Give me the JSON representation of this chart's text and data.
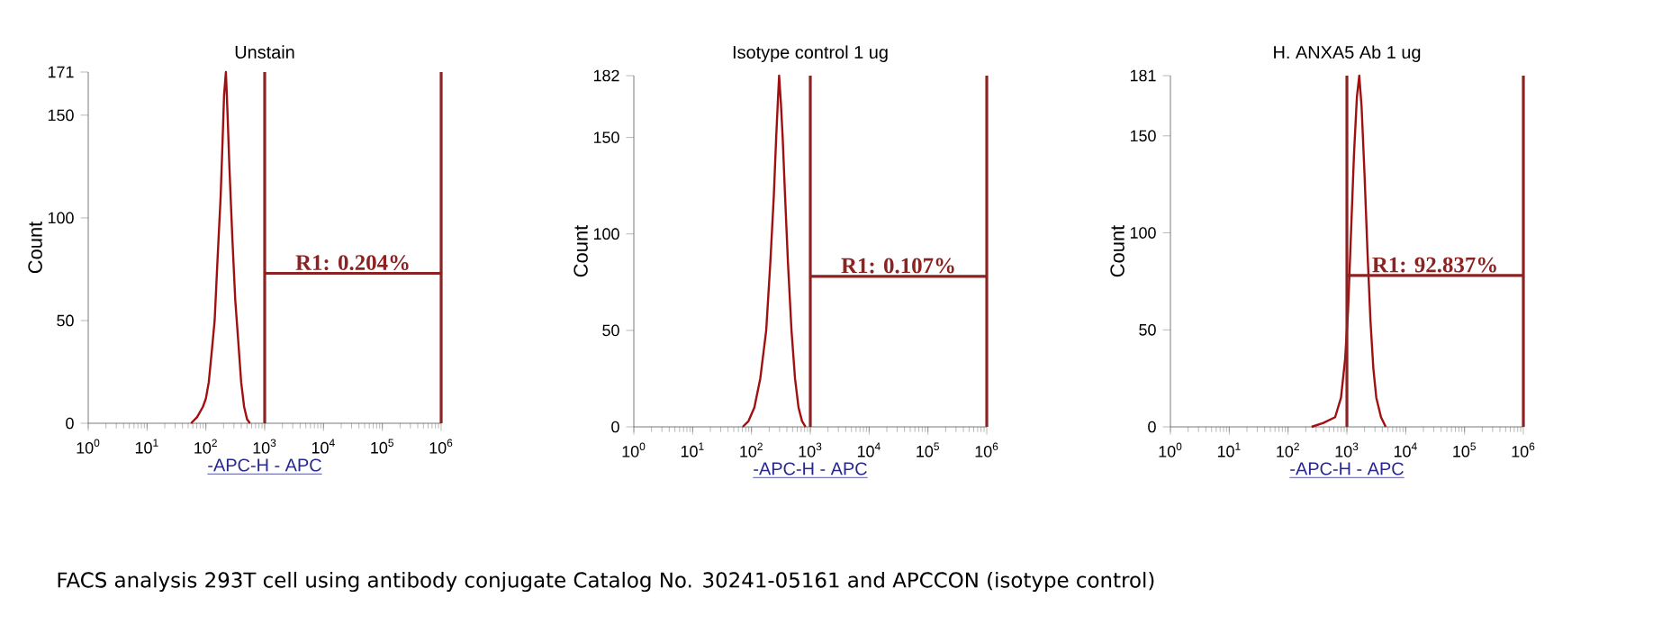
{
  "chart_data": [
    {
      "type": "line",
      "title": "Unstain",
      "xlabel": "-APC-H - APC",
      "ylabel": "Count",
      "log": "x",
      "xlim": [
        1,
        1000000
      ],
      "ylim": [
        0,
        171
      ],
      "xticks": [
        {
          "value": 1,
          "label": "10$^{0}$"
        },
        {
          "value": 10,
          "label": "10$^{1}$"
        },
        {
          "value": 100,
          "label": "10$^{2}$"
        },
        {
          "value": 1000,
          "label": "10$^{3}$"
        },
        {
          "value": 10000,
          "label": "10$^{4}$"
        },
        {
          "value": 100000,
          "label": "10$^{5}$"
        },
        {
          "value": 1000000,
          "label": "10$^{6}$"
        }
      ],
      "yticks": [
        0,
        50,
        100,
        150,
        171
      ],
      "x": [
        56,
        71,
        89,
        100,
        112,
        126,
        141,
        158,
        178,
        191,
        204,
        219,
        234,
        251,
        282,
        316,
        355,
        398,
        447,
        501,
        562
      ],
      "series": [
        {
          "color": "#a01010",
          "values": [
            0,
            3,
            8,
            12,
            20,
            35,
            50,
            80,
            110,
            135,
            160,
            171,
            150,
            125,
            90,
            60,
            40,
            20,
            8,
            2,
            0
          ]
        }
      ],
      "ref_lines": [
        {
          "axis": "x",
          "value": 1000,
          "color": "#8b2323"
        },
        {
          "axis": "x",
          "value": 1000000,
          "color": "#8b2323"
        },
        {
          "axis": "y",
          "value": 73,
          "color": "#8b2323"
        }
      ],
      "annotations": [
        "R1: 0.204%",
        "FACS analysis 293T cell using antibody conjugate Catalog No. 30241-05161 and APCCON (isotype control)"
      ]
    },
    {
      "type": "line",
      "title": "Isotype control 1 ug",
      "xlabel": "-APC-H - APC",
      "ylabel": "Count",
      "log": "x",
      "xlim": [
        1,
        1000000
      ],
      "ylim": [
        0,
        182
      ],
      "xticks": [
        {
          "value": 1,
          "label": "10$^{0}$"
        },
        {
          "value": 10,
          "label": "10$^{1}$"
        },
        {
          "value": 100,
          "label": "10$^{2}$"
        },
        {
          "value": 1000,
          "label": "10$^{3}$"
        },
        {
          "value": 10000,
          "label": "10$^{4}$"
        },
        {
          "value": 100000,
          "label": "10$^{5}$"
        },
        {
          "value": 1000000,
          "label": "10$^{6}$"
        }
      ],
      "yticks": [
        0,
        50,
        100,
        150,
        182
      ],
      "x": [
        71,
        89,
        112,
        141,
        178,
        209,
        240,
        263,
        282,
        295,
        316,
        339,
        372,
        417,
        479,
        550,
        631,
        724,
        832
      ],
      "series": [
        {
          "color": "#a01010",
          "values": [
            0,
            3,
            10,
            25,
            50,
            85,
            120,
            150,
            170,
            182,
            168,
            150,
            120,
            85,
            50,
            25,
            10,
            3,
            0
          ]
        }
      ],
      "ref_lines": [
        {
          "axis": "x",
          "value": 1000,
          "color": "#8b2323"
        },
        {
          "axis": "x",
          "value": 1000000,
          "color": "#8b2323"
        },
        {
          "axis": "y",
          "value": 78,
          "color": "#8b2323"
        }
      ],
      "annotations": [
        "R1: 0.107%"
      ]
    },
    {
      "type": "line",
      "title": "H. ANXA5 Ab 1 ug",
      "xlabel": "-APC-H - APC",
      "ylabel": "Count",
      "log": "x",
      "xlim": [
        1,
        1000000
      ],
      "ylim": [
        0,
        181
      ],
      "xticks": [
        {
          "value": 1,
          "label": "10$^{0}$"
        },
        {
          "value": 10,
          "label": "10$^{1}$"
        },
        {
          "value": 100,
          "label": "10$^{2}$"
        },
        {
          "value": 1000,
          "label": "10$^{3}$"
        },
        {
          "value": 10000,
          "label": "10$^{4}$"
        },
        {
          "value": 100000,
          "label": "10$^{5}$"
        },
        {
          "value": 1000000,
          "label": "10$^{6}$"
        }
      ],
      "yticks": [
        0,
        50,
        100,
        150,
        181
      ],
      "x": [
        251,
        398,
        631,
        794,
        933,
        1047,
        1175,
        1318,
        1479,
        1622,
        1778,
        1995,
        2239,
        2512,
        2818,
        3162,
        3802,
        4571
      ],
      "series": [
        {
          "color": "#a01010",
          "values": [
            0,
            2,
            5,
            15,
            35,
            60,
            100,
            140,
            170,
            181,
            165,
            130,
            90,
            55,
            30,
            15,
            5,
            0
          ]
        }
      ],
      "ref_lines": [
        {
          "axis": "x",
          "value": 1000,
          "color": "#8b2323"
        },
        {
          "axis": "x",
          "value": 1000000,
          "color": "#8b2323"
        },
        {
          "axis": "y",
          "value": 78,
          "color": "#8b2323"
        }
      ],
      "annotations": [
        "R1: 92.837%"
      ]
    }
  ]
}
